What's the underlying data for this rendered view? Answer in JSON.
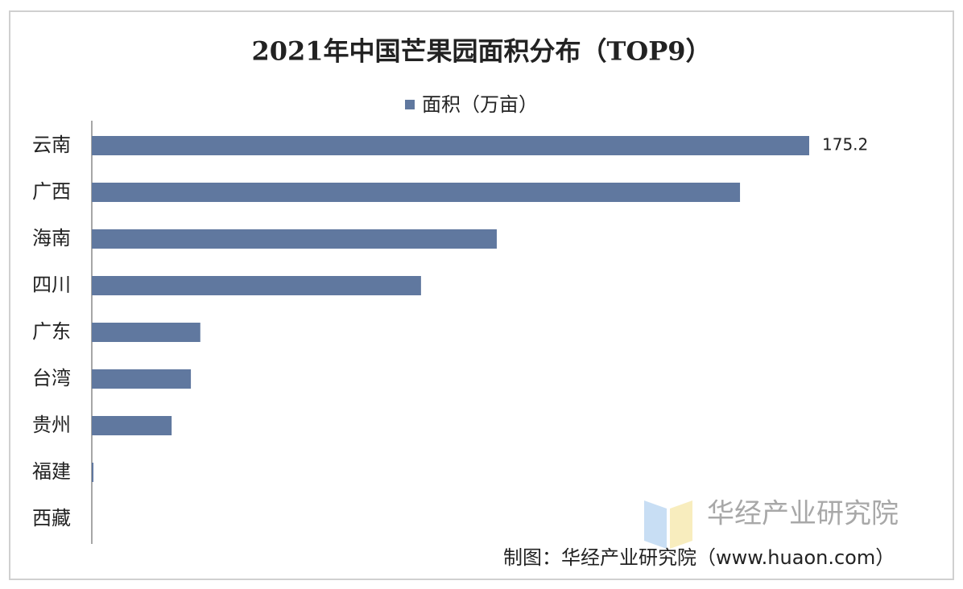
{
  "chart_data": {
    "type": "bar",
    "orientation": "horizontal",
    "title": "2021年中国芒果园面积分布（TOP9）",
    "categories": [
      "云南",
      "广西",
      "海南",
      "四川",
      "广东",
      "台湾",
      "贵州",
      "福建",
      "西藏"
    ],
    "series": [
      {
        "name": "面积（万亩）",
        "color": "#60789f",
        "values": [
          175.2,
          158.3,
          98.9,
          80.4,
          26.5,
          24.2,
          19.5,
          0.4,
          0
        ],
        "value_labels": [
          "175.2",
          null,
          null,
          null,
          null,
          null,
          null,
          null,
          null
        ]
      }
    ],
    "legend": "top",
    "watermark": "华经产业研究院",
    "source": "制图：华经产业研究院（www.huaon.com）"
  }
}
